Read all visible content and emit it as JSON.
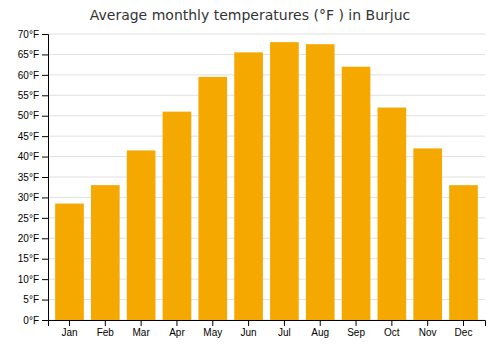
{
  "chart_data": {
    "type": "bar",
    "title": "Average monthly temperatures (°F ) in Burjuc",
    "categories": [
      "Jan",
      "Feb",
      "Mar",
      "Apr",
      "May",
      "Jun",
      "Jul",
      "Aug",
      "Sep",
      "Oct",
      "Nov",
      "Dec"
    ],
    "values": [
      28.5,
      33.0,
      41.5,
      51.0,
      59.5,
      65.5,
      68.0,
      67.5,
      62.0,
      52.0,
      42.0,
      33.0
    ],
    "color": "#F5A800",
    "ylim": [
      0,
      70
    ],
    "yticks": [
      {
        "value": 0,
        "label": "0°F"
      },
      {
        "value": 5,
        "label": "5°F"
      },
      {
        "value": 10,
        "label": "10°F"
      },
      {
        "value": 15,
        "label": "15°F"
      },
      {
        "value": 20,
        "label": "20°F"
      },
      {
        "value": 25,
        "label": "25°F"
      },
      {
        "value": 30,
        "label": "30°F"
      },
      {
        "value": 35,
        "label": "35°F"
      },
      {
        "value": 40,
        "label": "40°F"
      },
      {
        "value": 45,
        "label": "45°F"
      },
      {
        "value": 50,
        "label": "50°F"
      },
      {
        "value": 55,
        "label": "55°F"
      },
      {
        "value": 60,
        "label": "60°F"
      },
      {
        "value": 65,
        "label": "65°F"
      },
      {
        "value": 70,
        "label": "70°F"
      }
    ],
    "grid": true
  }
}
